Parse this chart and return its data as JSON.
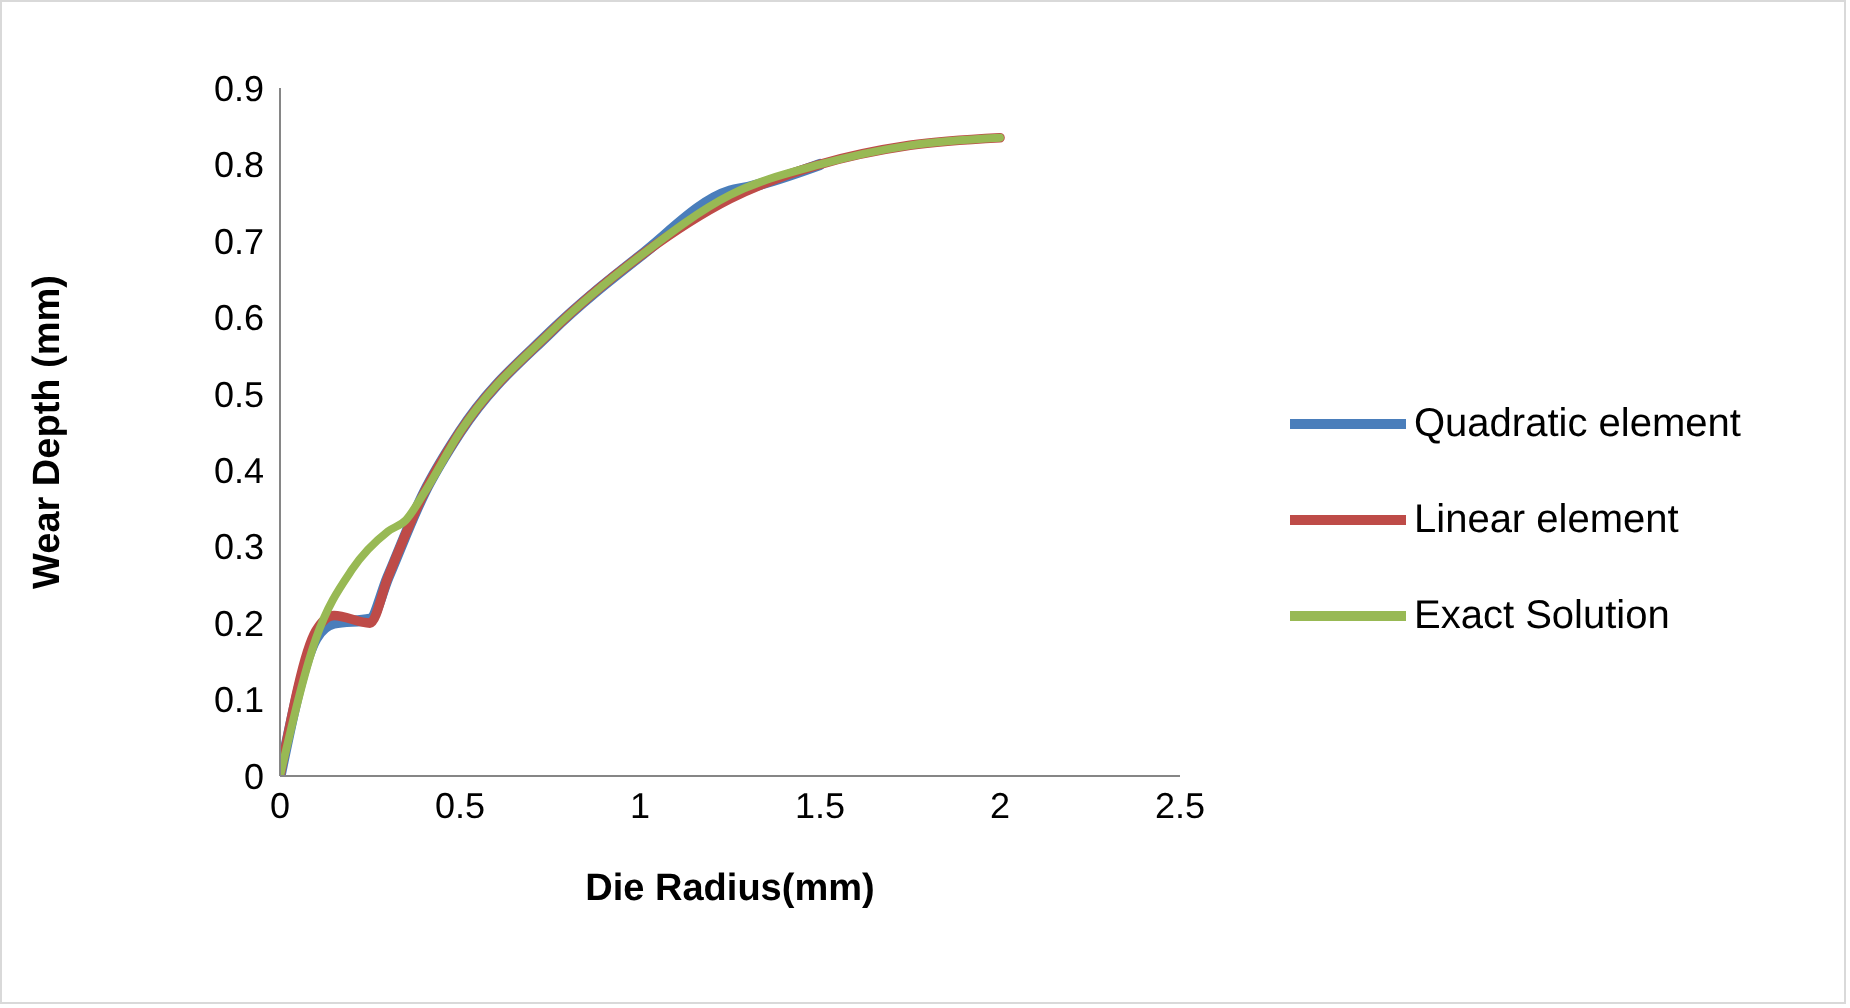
{
  "chart_data": {
    "type": "line",
    "xlabel": "Die Radius(mm)",
    "ylabel": "Wear Depth (mm)",
    "xlim": [
      0,
      2.5
    ],
    "xticks": [
      0,
      0.5,
      1,
      1.5,
      2,
      2.5
    ],
    "ylim": [
      0,
      0.9
    ],
    "yticks": [
      0,
      0.1,
      0.2,
      0.3,
      0.4,
      0.5,
      0.6,
      0.7,
      0.8,
      0.9
    ],
    "grid": false,
    "legend": "right",
    "marker": "none",
    "line_style": "solid",
    "series": [
      {
        "name": "Quadratic element",
        "color": "#4a7ebb",
        "x": [
          0,
          0.1,
          0.15,
          0.25,
          0.3,
          0.4,
          0.5,
          0.75,
          1,
          1.25,
          1.3,
          1.5
        ],
        "values": [
          0,
          0.18,
          0.2,
          0.205,
          0.26,
          0.37,
          0.45,
          0.58,
          0.68,
          0.765,
          0.77,
          0.8
        ]
      },
      {
        "name": "Linear element",
        "color": "#be4b48",
        "x": [
          0,
          0.1,
          0.15,
          0.25,
          0.3,
          0.4,
          0.5,
          0.75,
          1,
          1.25,
          1.5,
          1.75,
          2
        ],
        "values": [
          0,
          0.19,
          0.21,
          0.2,
          0.26,
          0.37,
          0.45,
          0.58,
          0.68,
          0.755,
          0.8,
          0.825,
          0.835
        ]
      },
      {
        "name": "Exact Solution",
        "color": "#98b954",
        "x": [
          0,
          0.1,
          0.2,
          0.3,
          0.35,
          0.4,
          0.5,
          0.75,
          1,
          1.25,
          1.5,
          1.75,
          2
        ],
        "values": [
          0,
          0.18,
          0.27,
          0.32,
          0.335,
          0.37,
          0.45,
          0.58,
          0.68,
          0.76,
          0.8,
          0.825,
          0.835
        ]
      }
    ]
  }
}
